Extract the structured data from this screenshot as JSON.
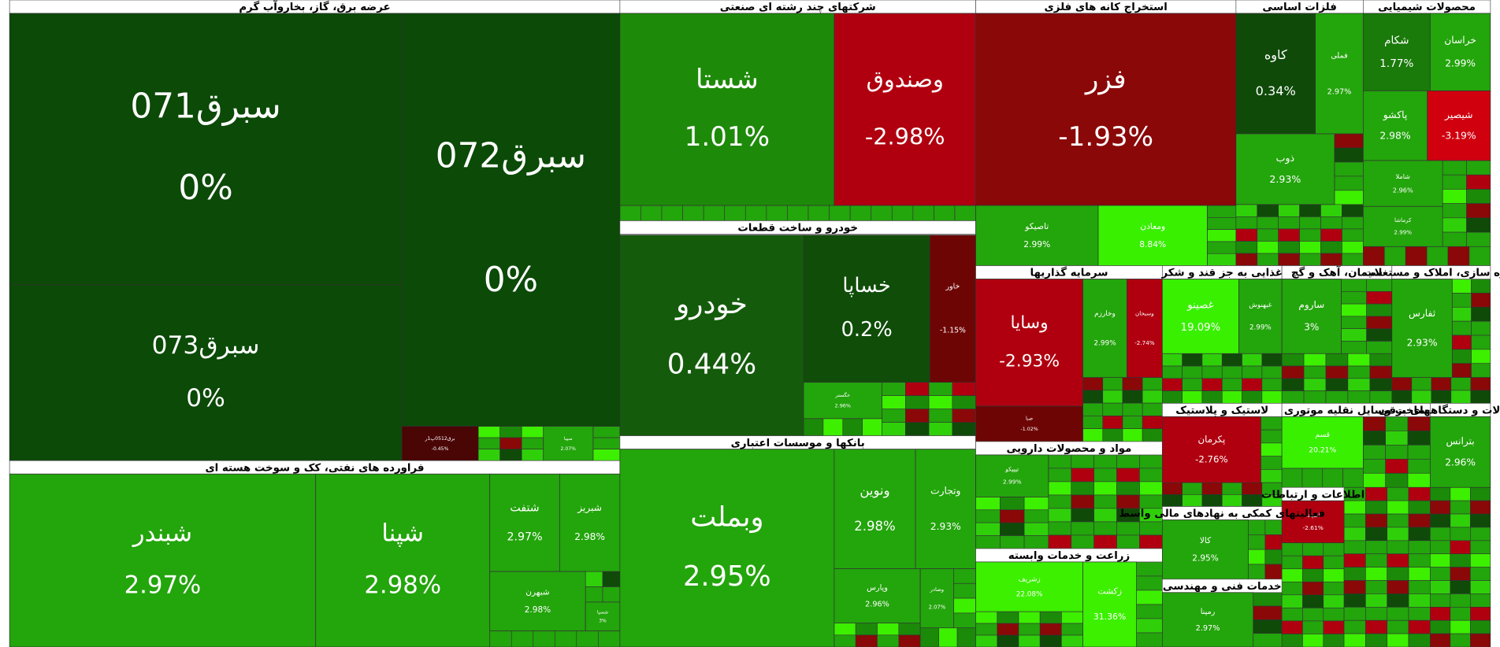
{
  "sectors": [
    {
      "title": "عرضه برق، گاز، بخاروآب گرم",
      "tiles": [
        {
          "name": "سبرق071",
          "change": "0%",
          "color": "#0b4a07"
        },
        {
          "name": "سبرق073",
          "change": "0%",
          "color": "#0b4a07"
        },
        {
          "name": "سبرق072",
          "change": "0%",
          "color": "#0b4a07"
        },
        {
          "name": "برق0512پ1ر",
          "change": "-0.45%",
          "color": "#4a0505"
        },
        {
          "name": "سپیا",
          "change": "2.07%",
          "color": "#23a50c"
        }
      ]
    },
    {
      "title": "فراورده های نفتی، کک و سوخت هسته ای",
      "tiles": [
        {
          "name": "شبندر",
          "change": "2.97%",
          "color": "#23a50c"
        },
        {
          "name": "شپنا",
          "change": "2.98%",
          "color": "#23a50c"
        },
        {
          "name": "شتفت",
          "change": "2.97%",
          "color": "#23a50c"
        },
        {
          "name": "شبریز",
          "change": "2.98%",
          "color": "#23a50c"
        },
        {
          "name": "شبهرن",
          "change": "2.98%",
          "color": "#23a50c"
        },
        {
          "name": "شسپا",
          "change": "3%",
          "color": "#23a50c"
        }
      ]
    },
    {
      "title": "شرکتهای چند رشته ای صنعتی",
      "tiles": [
        {
          "name": "شستا",
          "change": "1.01%",
          "color": "#1e8a0a"
        },
        {
          "name": "وصندوق",
          "change": "-2.98%",
          "color": "#b00010"
        }
      ]
    },
    {
      "title": "خودرو و ساخت قطعات",
      "tiles": [
        {
          "name": "خودرو",
          "change": "0.44%",
          "color": "#145c0b"
        },
        {
          "name": "خساپا",
          "change": "0.2%",
          "color": "#0f4d09"
        },
        {
          "name": "خاور",
          "change": "-1.15%",
          "color": "#6e0505"
        },
        {
          "name": "خگستر",
          "change": "2.96%",
          "color": "#23a50c"
        }
      ]
    },
    {
      "title": "بانکها و موسسات اعتباری",
      "tiles": [
        {
          "name": "وبملت",
          "change": "2.95%",
          "color": "#23a50c"
        },
        {
          "name": "ونوین",
          "change": "2.98%",
          "color": "#23a50c"
        },
        {
          "name": "وتجارت",
          "change": "2.93%",
          "color": "#23a50c"
        },
        {
          "name": "وپارس",
          "change": "2.96%",
          "color": "#23a50c"
        },
        {
          "name": "وصادر",
          "change": "2.07%",
          "color": "#23a50c"
        }
      ]
    },
    {
      "title": "استخراج کانه های فلزی",
      "tiles": [
        {
          "name": "فزر",
          "change": "-1.93%",
          "color": "#8a0808"
        },
        {
          "name": "تاصیکو",
          "change": "2.99%",
          "color": "#23a50c"
        },
        {
          "name": "ومعادن",
          "change": "8.84%",
          "color": "#38f000"
        }
      ]
    },
    {
      "title": "فلزات اساسی",
      "tiles": [
        {
          "name": "کاوه",
          "change": "0.34%",
          "color": "#0f4a09"
        },
        {
          "name": "فملی",
          "change": "2.97%",
          "color": "#23a50c"
        },
        {
          "name": "ذوب",
          "change": "2.93%",
          "color": "#23a50c"
        }
      ]
    },
    {
      "title": "محصولات شیمیایی",
      "tiles": [
        {
          "name": "شکام",
          "change": "1.77%",
          "color": "#1a7a0a"
        },
        {
          "name": "خراسان",
          "change": "2.99%",
          "color": "#23a50c"
        },
        {
          "name": "پاکشو",
          "change": "2.98%",
          "color": "#23a50c"
        },
        {
          "name": "شیصیر",
          "change": "-3.19%",
          "color": "#d0000f"
        },
        {
          "name": "شاملا",
          "change": "2.96%",
          "color": "#23a50c"
        },
        {
          "name": "کرماشا",
          "change": "2.99%",
          "color": "#23a50c"
        }
      ]
    },
    {
      "title": "سرمایه گذاریها",
      "tiles": [
        {
          "name": "وسایا",
          "change": "-2.93%",
          "color": "#b00010"
        },
        {
          "name": "وخارزم",
          "change": "2.99%",
          "color": "#23a50c"
        },
        {
          "name": "وسبحان",
          "change": "-2.74%",
          "color": "#b00010"
        },
        {
          "name": "صبا",
          "change": "-1.02%",
          "color": "#6e0505"
        }
      ]
    },
    {
      "title": "مواد و محصولات دارویی",
      "tiles": [
        {
          "name": "تیپیکو",
          "change": "2.99%",
          "color": "#23a50c"
        }
      ]
    },
    {
      "title": "زراعت و خدمات وابسته",
      "tiles": [
        {
          "name": "زشریف",
          "change": "22.08%",
          "color": "#3cf000"
        },
        {
          "name": "زکشت",
          "change": "31.36%",
          "color": "#3cf000"
        }
      ]
    },
    {
      "title": "غذایی به جز قند و شکر",
      "tiles": [
        {
          "name": "غصینو",
          "change": "19.09%",
          "color": "#38f000"
        },
        {
          "name": "غبهنوش",
          "change": "2.99%",
          "color": "#23a50c"
        }
      ]
    },
    {
      "title": "سیمان، آهک و گچ",
      "tiles": [
        {
          "name": "ساروم",
          "change": "3%",
          "color": "#23a50c"
        }
      ]
    },
    {
      "title": "انبوه سازی، املاک و مستغلات",
      "tiles": [
        {
          "name": "ثفارس",
          "change": "2.93%",
          "color": "#23a50c"
        }
      ]
    },
    {
      "title": "لاستیک و پلاستیک",
      "tiles": [
        {
          "name": "پکرمان",
          "change": "-2.76%",
          "color": "#b00010"
        }
      ]
    },
    {
      "title": "ساخت وسایل نقلیه موتوری",
      "tiles": [
        {
          "name": "قسم",
          "change": "20.21%",
          "color": "#38f000"
        }
      ]
    },
    {
      "title": "ماشین آلات و دستگاههای برقی",
      "tiles": [
        {
          "name": "بترانس",
          "change": "2.96%",
          "color": "#23a50c"
        }
      ]
    },
    {
      "title": "اطلاعات و ارتباطات",
      "tiles": [
        {
          "name": "اسپادا",
          "change": "-2.61%",
          "color": "#b00010"
        }
      ]
    },
    {
      "title": "فعالیتهای کمکی به نهادهای مالی واسط",
      "tiles": [
        {
          "name": "کالا",
          "change": "2.95%",
          "color": "#23a50c"
        }
      ]
    },
    {
      "title": "خدمات فنی و مهندسی",
      "tiles": [
        {
          "name": "رمپنا",
          "change": "2.97%",
          "color": "#23a50c"
        }
      ]
    }
  ]
}
